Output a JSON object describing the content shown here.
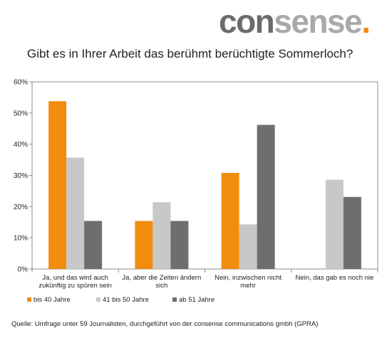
{
  "brand": {
    "logo_part1": "con",
    "logo_part2": "sense",
    "logo_dot": ".",
    "logo_color_dark": "#6b6b6b",
    "logo_color_light": "#a9a9a9",
    "logo_dot_color": "#f0890a"
  },
  "chart_data": {
    "type": "bar",
    "title": "Gibt es in Ihrer Arbeit das berühmt berüchtigte Sommerloch?",
    "xlabel": "",
    "ylabel": "",
    "ylim": [
      0,
      60
    ],
    "yticks": [
      "0%",
      "10%",
      "20%",
      "30%",
      "40%",
      "50%",
      "60%"
    ],
    "categories": [
      [
        "Ja, und das wird auch",
        "zukünftig zu spüren sein"
      ],
      [
        "Ja, aber die Zeiten ändern",
        "sich"
      ],
      [
        "Nein, inzwischen nicht",
        "mehr"
      ],
      [
        "Nein, das gab es noch nie"
      ]
    ],
    "series": [
      {
        "name": "bis 40 Jahre",
        "color": "#f28c0f",
        "values": [
          53.8,
          15.4,
          30.8,
          null
        ]
      },
      {
        "name": "41 bis 50 Jahre",
        "color": "#c8c8c8",
        "values": [
          35.7,
          21.4,
          14.3,
          28.6
        ]
      },
      {
        "name": "ab 51 Jahre",
        "color": "#6e6e6e",
        "values": [
          15.4,
          15.4,
          46.2,
          23.1
        ]
      }
    ],
    "grid": false,
    "legend_position": "bottom-left"
  },
  "footer": {
    "source": "Quelle: Umfrage unter 59 Journalisten, durchgeführt von der consense communications gmbh (GPRA)"
  }
}
